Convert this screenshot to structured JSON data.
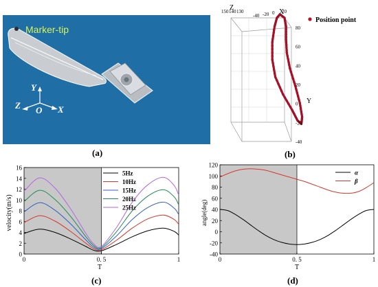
{
  "captions": {
    "a": "(a)",
    "b": "(b)",
    "c": "(c)",
    "d": "(d)"
  },
  "panel_a": {
    "marker_label": "Marker-tip",
    "axis_y": "Y",
    "axis_z": "Z",
    "axis_o": "O",
    "axis_x": "X",
    "colors": {
      "background": "#1f6fa6",
      "label": "#d8f25a",
      "wing": "#c9cdd1"
    }
  },
  "chart_data": [
    {
      "panel": "b",
      "type": "scatter",
      "legend": "Position point",
      "legend_position": "top-right",
      "axis_labels": {
        "x": "X",
        "y": "Y",
        "z": "Z"
      },
      "x_ticks": [
        "-40",
        "-20",
        "0",
        "20"
      ],
      "y_ticks": [
        "80",
        "60",
        "40",
        "20",
        "0",
        "-20",
        "-40"
      ],
      "z_ticks": [
        "150",
        "140",
        "130"
      ],
      "ylim": [
        -40,
        80
      ],
      "color": "#b5122a",
      "loop_points": [
        {
          "x": 24,
          "y": 84
        },
        {
          "x": 30,
          "y": 80
        },
        {
          "x": 32,
          "y": 70
        },
        {
          "x": 32,
          "y": 55
        },
        {
          "x": 33,
          "y": 40
        },
        {
          "x": 37,
          "y": 22
        },
        {
          "x": 44,
          "y": 2
        },
        {
          "x": 50,
          "y": -18
        },
        {
          "x": 53,
          "y": -34
        },
        {
          "x": 52,
          "y": -42
        },
        {
          "x": 47,
          "y": -38
        },
        {
          "x": 40,
          "y": -26
        },
        {
          "x": 28,
          "y": -8
        },
        {
          "x": 18,
          "y": 12
        },
        {
          "x": 14,
          "y": 32
        },
        {
          "x": 14,
          "y": 52
        },
        {
          "x": 17,
          "y": 70
        },
        {
          "x": 20,
          "y": 80
        },
        {
          "x": 24,
          "y": 84
        }
      ]
    },
    {
      "panel": "c",
      "type": "line",
      "xlabel": "T",
      "ylabel": "velocity(m/s)",
      "xlim": [
        0,
        1
      ],
      "ylim": [
        0,
        16
      ],
      "x_ticks": [
        "0",
        "0. 5",
        "1"
      ],
      "y_ticks": [
        "0",
        "2",
        "4",
        "6",
        "8",
        "10",
        "12",
        "14",
        "16"
      ],
      "shaded_region": [
        0,
        0.5
      ],
      "legend_position": "top-right",
      "series": [
        {
          "name": "5Hz",
          "color": "#000000",
          "x": [
            0,
            0.1,
            0.2,
            0.3,
            0.4,
            0.45,
            0.5,
            0.6,
            0.7,
            0.8,
            0.9,
            0.97,
            1.0
          ],
          "y": [
            3.8,
            4.6,
            4.0,
            2.8,
            1.4,
            0.7,
            0.6,
            1.8,
            3.2,
            4.3,
            4.8,
            4.2,
            3.5
          ]
        },
        {
          "name": "10Hz",
          "color": "#d9352b",
          "x": [
            0,
            0.1,
            0.2,
            0.3,
            0.4,
            0.45,
            0.5,
            0.6,
            0.7,
            0.8,
            0.9,
            0.97,
            1.0
          ],
          "y": [
            5.8,
            7.1,
            6.1,
            4.2,
            2.0,
            1.0,
            0.8,
            2.6,
            4.8,
            6.5,
            7.2,
            6.4,
            5.5
          ]
        },
        {
          "name": "15Hz",
          "color": "#2f5fc4",
          "x": [
            0,
            0.1,
            0.2,
            0.3,
            0.4,
            0.45,
            0.5,
            0.6,
            0.7,
            0.8,
            0.9,
            0.97,
            1.0
          ],
          "y": [
            7.8,
            9.5,
            8.1,
            5.6,
            2.6,
            1.3,
            1.0,
            3.4,
            6.4,
            8.6,
            9.6,
            8.5,
            7.3
          ]
        },
        {
          "name": "20Hz",
          "color": "#1f8a55",
          "x": [
            0,
            0.1,
            0.2,
            0.3,
            0.4,
            0.45,
            0.5,
            0.6,
            0.7,
            0.8,
            0.9,
            0.97,
            1.0
          ],
          "y": [
            9.7,
            11.8,
            10.1,
            7.0,
            3.2,
            1.6,
            1.2,
            4.2,
            8.0,
            10.7,
            11.9,
            10.6,
            9.1
          ]
        },
        {
          "name": "25Hz",
          "color": "#b266e0",
          "x": [
            0,
            0.1,
            0.2,
            0.3,
            0.4,
            0.45,
            0.5,
            0.6,
            0.7,
            0.8,
            0.9,
            0.97,
            1.0
          ],
          "y": [
            11.6,
            14.1,
            12.2,
            8.4,
            3.8,
            1.9,
            1.4,
            5.0,
            9.6,
            12.8,
            14.2,
            12.7,
            10.9
          ]
        }
      ]
    },
    {
      "panel": "d",
      "type": "line",
      "xlabel": "T",
      "ylabel": "angle(deg)",
      "xlim": [
        0,
        1
      ],
      "ylim": [
        -40,
        120
      ],
      "x_ticks": [
        "0",
        "0. 5",
        "1"
      ],
      "y_ticks": [
        "-40",
        "-20",
        "0",
        "20",
        "40",
        "60",
        "80",
        "100",
        "120"
      ],
      "shaded_region": [
        0,
        0.5
      ],
      "legend_position": "top-right",
      "series": [
        {
          "name": "α",
          "color": "#000000",
          "x": [
            0,
            0.05,
            0.1,
            0.15,
            0.2,
            0.25,
            0.3,
            0.35,
            0.4,
            0.45,
            0.5,
            0.55,
            0.6,
            0.65,
            0.7,
            0.75,
            0.8,
            0.85,
            0.9,
            0.95,
            1.0
          ],
          "y": [
            40,
            38,
            31,
            22,
            12,
            2,
            -7,
            -14,
            -19,
            -22,
            -23,
            -22,
            -19,
            -14,
            -7,
            2,
            12,
            22,
            31,
            38,
            40
          ]
        },
        {
          "name": "β",
          "color": "#d9352b",
          "x": [
            0,
            0.05,
            0.1,
            0.15,
            0.2,
            0.25,
            0.3,
            0.35,
            0.4,
            0.45,
            0.5,
            0.55,
            0.6,
            0.65,
            0.7,
            0.75,
            0.8,
            0.85,
            0.9,
            0.95,
            1.0
          ],
          "y": [
            98,
            104,
            109,
            112,
            113,
            112,
            110,
            106,
            102,
            98,
            94,
            90,
            85,
            80,
            75,
            71,
            69,
            69,
            72,
            79,
            88
          ]
        }
      ]
    }
  ]
}
